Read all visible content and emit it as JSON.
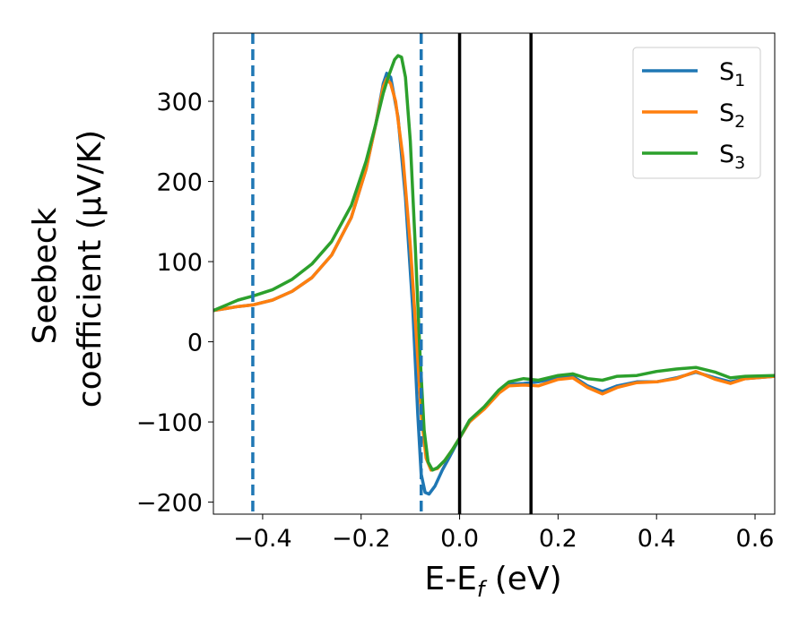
{
  "chart_data": {
    "type": "line",
    "xlabel": {
      "main": "E-E",
      "sub": "f",
      "unit": " (eV)"
    },
    "ylabel": {
      "line1": "Seebeck",
      "line2": "coefficient  (μV/K)"
    },
    "xlim": [
      -0.5,
      0.64
    ],
    "ylim": [
      -215,
      385
    ],
    "x_ticks": [
      {
        "value": -0.4,
        "label": "−0.4"
      },
      {
        "value": -0.2,
        "label": "−0.2"
      },
      {
        "value": 0.0,
        "label": "0.0"
      },
      {
        "value": 0.2,
        "label": "0.2"
      },
      {
        "value": 0.4,
        "label": "0.4"
      },
      {
        "value": 0.6,
        "label": "0.6"
      }
    ],
    "y_ticks": [
      {
        "value": -200,
        "label": "−200"
      },
      {
        "value": -100,
        "label": "−100"
      },
      {
        "value": 0,
        "label": "0"
      },
      {
        "value": 100,
        "label": "100"
      },
      {
        "value": 200,
        "label": "200"
      },
      {
        "value": 300,
        "label": "300"
      }
    ],
    "legend_position": "top-right",
    "grid": false,
    "series": [
      {
        "name": "S",
        "name_sub": "1",
        "color": "#1f77b4",
        "points": [
          [
            -0.5,
            39
          ],
          [
            -0.45,
            44
          ],
          [
            -0.42,
            46
          ],
          [
            -0.38,
            52
          ],
          [
            -0.34,
            63
          ],
          [
            -0.3,
            80
          ],
          [
            -0.26,
            108
          ],
          [
            -0.22,
            155
          ],
          [
            -0.19,
            215
          ],
          [
            -0.17,
            272
          ],
          [
            -0.155,
            322
          ],
          [
            -0.148,
            335
          ],
          [
            -0.14,
            330
          ],
          [
            -0.125,
            280
          ],
          [
            -0.11,
            180
          ],
          [
            -0.095,
            40
          ],
          [
            -0.085,
            -90
          ],
          [
            -0.078,
            -165
          ],
          [
            -0.07,
            -188
          ],
          [
            -0.062,
            -190
          ],
          [
            -0.05,
            -180
          ],
          [
            -0.035,
            -160
          ],
          [
            -0.02,
            -143
          ],
          [
            0.0,
            -120
          ],
          [
            0.02,
            -100
          ],
          [
            0.05,
            -83
          ],
          [
            0.08,
            -63
          ],
          [
            0.1,
            -53
          ],
          [
            0.13,
            -52
          ],
          [
            0.16,
            -50
          ],
          [
            0.2,
            -45
          ],
          [
            0.23,
            -43
          ],
          [
            0.26,
            -55
          ],
          [
            0.29,
            -62
          ],
          [
            0.32,
            -55
          ],
          [
            0.36,
            -50
          ],
          [
            0.4,
            -50
          ],
          [
            0.44,
            -45
          ],
          [
            0.48,
            -38
          ],
          [
            0.52,
            -45
          ],
          [
            0.55,
            -50
          ],
          [
            0.58,
            -46
          ],
          [
            0.64,
            -43
          ]
        ]
      },
      {
        "name": "S",
        "name_sub": "2",
        "color": "#ff7f0e",
        "points": [
          [
            -0.5,
            39
          ],
          [
            -0.45,
            44
          ],
          [
            -0.42,
            46
          ],
          [
            -0.38,
            52
          ],
          [
            -0.34,
            63
          ],
          [
            -0.3,
            80
          ],
          [
            -0.26,
            108
          ],
          [
            -0.22,
            155
          ],
          [
            -0.19,
            215
          ],
          [
            -0.17,
            272
          ],
          [
            -0.155,
            318
          ],
          [
            -0.148,
            328
          ],
          [
            -0.14,
            322
          ],
          [
            -0.13,
            300
          ],
          [
            -0.115,
            230
          ],
          [
            -0.1,
            120
          ],
          [
            -0.088,
            10
          ],
          [
            -0.078,
            -90
          ],
          [
            -0.068,
            -145
          ],
          [
            -0.058,
            -160
          ],
          [
            -0.045,
            -158
          ],
          [
            -0.03,
            -148
          ],
          [
            -0.015,
            -135
          ],
          [
            0.0,
            -120
          ],
          [
            0.02,
            -100
          ],
          [
            0.05,
            -84
          ],
          [
            0.08,
            -64
          ],
          [
            0.1,
            -55
          ],
          [
            0.13,
            -54
          ],
          [
            0.16,
            -55
          ],
          [
            0.2,
            -47
          ],
          [
            0.23,
            -45
          ],
          [
            0.26,
            -57
          ],
          [
            0.29,
            -65
          ],
          [
            0.32,
            -57
          ],
          [
            0.36,
            -51
          ],
          [
            0.4,
            -50
          ],
          [
            0.44,
            -46
          ],
          [
            0.48,
            -37
          ],
          [
            0.52,
            -47
          ],
          [
            0.55,
            -52
          ],
          [
            0.58,
            -46
          ],
          [
            0.64,
            -43
          ]
        ]
      },
      {
        "name": "S",
        "name_sub": "3",
        "color": "#2ca02c",
        "points": [
          [
            -0.5,
            39
          ],
          [
            -0.45,
            52
          ],
          [
            -0.42,
            57
          ],
          [
            -0.38,
            65
          ],
          [
            -0.34,
            78
          ],
          [
            -0.3,
            97
          ],
          [
            -0.26,
            125
          ],
          [
            -0.22,
            170
          ],
          [
            -0.19,
            225
          ],
          [
            -0.17,
            272
          ],
          [
            -0.155,
            310
          ],
          [
            -0.145,
            330
          ],
          [
            -0.132,
            352
          ],
          [
            -0.125,
            357
          ],
          [
            -0.118,
            355
          ],
          [
            -0.11,
            330
          ],
          [
            -0.1,
            250
          ],
          [
            -0.09,
            120
          ],
          [
            -0.08,
            -20
          ],
          [
            -0.072,
            -110
          ],
          [
            -0.064,
            -150
          ],
          [
            -0.055,
            -160
          ],
          [
            -0.045,
            -157
          ],
          [
            -0.03,
            -148
          ],
          [
            -0.015,
            -135
          ],
          [
            0.0,
            -120
          ],
          [
            0.02,
            -98
          ],
          [
            0.05,
            -81
          ],
          [
            0.08,
            -60
          ],
          [
            0.1,
            -50
          ],
          [
            0.13,
            -46
          ],
          [
            0.16,
            -48
          ],
          [
            0.2,
            -42
          ],
          [
            0.23,
            -40
          ],
          [
            0.26,
            -46
          ],
          [
            0.29,
            -48
          ],
          [
            0.32,
            -43
          ],
          [
            0.36,
            -42
          ],
          [
            0.4,
            -37
          ],
          [
            0.44,
            -34
          ],
          [
            0.48,
            -32
          ],
          [
            0.52,
            -38
          ],
          [
            0.55,
            -45
          ],
          [
            0.58,
            -43
          ],
          [
            0.64,
            -42
          ]
        ]
      }
    ],
    "vlines": [
      {
        "x": -0.42,
        "color": "#1f77b4",
        "style": "dashed"
      },
      {
        "x": -0.078,
        "color": "#1f77b4",
        "style": "dashed"
      },
      {
        "x": 0.0,
        "color": "#000000",
        "style": "solid"
      },
      {
        "x": 0.145,
        "color": "#000000",
        "style": "solid"
      }
    ]
  }
}
